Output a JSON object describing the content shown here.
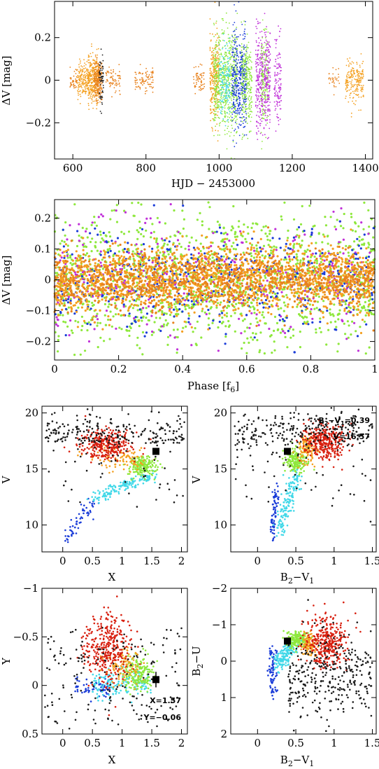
{
  "chart_data": [
    {
      "id": "lc",
      "type": "scatter",
      "xlabel": "HJD − 2453000",
      "ylabel": "ΔV [mag]",
      "xlim": [
        550,
        1420
      ],
      "ylim": [
        0.37,
        -0.37
      ],
      "xticks": [
        600,
        800,
        1000,
        1200,
        1400
      ],
      "yticks": [
        -0.2,
        0,
        0.2
      ],
      "xtick_labels": [
        "600",
        "800",
        "1000",
        "1200",
        "1400"
      ],
      "ytick_labels": [
        "−0.2",
        "0",
        "0.2"
      ],
      "seasons": [
        {
          "x_range": [
            592,
            612
          ],
          "amp": 0.06,
          "color": "#e8821e",
          "n": 40
        },
        {
          "x_range": [
            612,
            642
          ],
          "amp": 0.1,
          "color": "#f4a020",
          "n": 160
        },
        {
          "x_range": [
            642,
            672
          ],
          "amp": 0.13,
          "color": "#f4a020",
          "n": 320
        },
        {
          "x_range": [
            658,
            680
          ],
          "amp": 0.12,
          "color": "#e8821e",
          "n": 200
        },
        {
          "x_range": [
            672,
            684
          ],
          "amp": 0.15,
          "color": "#1a1a1a",
          "n": 60
        },
        {
          "x_range": [
            690,
            730
          ],
          "amp": 0.07,
          "color": "#e8821e",
          "n": 70
        },
        {
          "x_range": [
            770,
            820
          ],
          "amp": 0.07,
          "color": "#e8821e",
          "n": 90
        },
        {
          "x_range": [
            930,
            960
          ],
          "amp": 0.07,
          "color": "#e8821e",
          "n": 60
        },
        {
          "x_range": [
            975,
            1000
          ],
          "amp": 0.25,
          "color": "#f4a020",
          "n": 260
        },
        {
          "x_range": [
            985,
            1050
          ],
          "amp": 0.28,
          "color": "#8ee83c",
          "n": 650
        },
        {
          "x_range": [
            1000,
            1030
          ],
          "amp": 0.22,
          "color": "#40d8e8",
          "n": 140
        },
        {
          "x_range": [
            1035,
            1075
          ],
          "amp": 0.28,
          "color": "#1a3cd8",
          "n": 420
        },
        {
          "x_range": [
            1060,
            1090
          ],
          "amp": 0.25,
          "color": "#8ee83c",
          "n": 260
        },
        {
          "x_range": [
            1100,
            1120
          ],
          "amp": 0.3,
          "color": "#c030d8",
          "n": 220
        },
        {
          "x_range": [
            1115,
            1135
          ],
          "amp": 0.28,
          "color": "#8ee83c",
          "n": 150
        },
        {
          "x_range": [
            1122,
            1140
          ],
          "amp": 0.27,
          "color": "#c030d8",
          "n": 180
        },
        {
          "x_range": [
            1150,
            1170
          ],
          "amp": 0.25,
          "color": "#c030d8",
          "n": 120
        },
        {
          "x_range": [
            1300,
            1330
          ],
          "amp": 0.07,
          "color": "#e8821e",
          "n": 30
        },
        {
          "x_range": [
            1345,
            1395
          ],
          "amp": 0.12,
          "color": "#f4a020",
          "n": 200
        }
      ]
    },
    {
      "id": "phase",
      "type": "scatter",
      "xlabel": "Phase [f6]",
      "ylabel": "ΔV [mag]",
      "xlim": [
        0,
        1
      ],
      "ylim": [
        0.26,
        -0.26
      ],
      "xticks": [
        0,
        0.2,
        0.4,
        0.6,
        0.8,
        1
      ],
      "yticks": [
        -0.2,
        -0.1,
        0,
        0.1,
        0.2
      ],
      "xtick_labels": [
        "0",
        "0.2",
        "0.4",
        "0.6",
        "0.8",
        "1"
      ],
      "ytick_labels": [
        "−0.2",
        "−0.1",
        "0",
        "0.1",
        "0.2"
      ],
      "series": [
        {
          "color": "#8ee83c",
          "sigma": 0.11,
          "n": 1400
        },
        {
          "color": "#c030d8",
          "sigma": 0.09,
          "n": 350
        },
        {
          "color": "#1a3cd8",
          "sigma": 0.08,
          "n": 450
        },
        {
          "color": "#f4a020",
          "sigma": 0.055,
          "n": 1500
        },
        {
          "color": "#e8821e",
          "sigma": 0.045,
          "n": 1000
        }
      ]
    },
    {
      "id": "cmd_vx",
      "type": "scatter",
      "xlabel": "X",
      "ylabel": "V",
      "xlim": [
        -0.35,
        2.1
      ],
      "ylim": [
        20.6,
        7.6
      ],
      "xticks": [
        0,
        0.5,
        1,
        1.5,
        2
      ],
      "yticks": [
        10,
        15,
        20
      ],
      "xtick_labels": [
        "0",
        "0.5",
        "1",
        "1.5",
        "2"
      ],
      "ytick_labels": [
        "10",
        "15",
        "20"
      ],
      "target": {
        "x": 1.57,
        "y": 16.57
      }
    },
    {
      "id": "cmd_vbv",
      "type": "scatter",
      "xlabel": "B2−V1",
      "ylabel": "V",
      "xlim": [
        -0.35,
        1.55
      ],
      "ylim": [
        20.6,
        7.6
      ],
      "xticks": [
        0,
        0.5,
        1,
        1.5
      ],
      "yticks": [
        10,
        15,
        20
      ],
      "xtick_labels": [
        "0",
        "0.5",
        "1",
        "1.5"
      ],
      "ytick_labels": [
        "10",
        "15",
        "20"
      ],
      "target": {
        "x": 0.39,
        "y": 16.57
      },
      "annotations": [
        "B2−V1=0.39",
        "V=16.57"
      ]
    },
    {
      "id": "ccd_xy",
      "type": "scatter",
      "xlabel": "X",
      "ylabel": "Y",
      "xlim": [
        -0.35,
        2.1
      ],
      "ylim": [
        -1,
        0.5
      ],
      "xticks": [
        0,
        0.5,
        1,
        1.5,
        2
      ],
      "yticks": [
        -1,
        -0.5,
        0,
        0.5
      ],
      "xtick_labels": [
        "0",
        "0.5",
        "1",
        "1.5",
        "2"
      ],
      "ytick_labels": [
        "−1",
        "−0.5",
        "0",
        "0.5"
      ],
      "target": {
        "x": 1.57,
        "y": -0.06,
        "err": 0.08
      },
      "annotations": [
        "X=1.57",
        "Y=−0.06"
      ]
    },
    {
      "id": "ccd_ub",
      "type": "scatter",
      "xlabel": "B2−V1",
      "ylabel": "B2−U",
      "xlim": [
        -0.35,
        1.55
      ],
      "ylim": [
        -2,
        2
      ],
      "xticks": [
        0,
        0.5,
        1,
        1.5
      ],
      "yticks": [
        -2,
        -1,
        0,
        1,
        2
      ],
      "xtick_labels": [
        "0",
        "0.5",
        "1",
        "1.5"
      ],
      "ytick_labels": [
        "−2",
        "−1",
        "0",
        "1",
        "2"
      ],
      "target": {
        "x": 0.39,
        "y": -0.55
      }
    }
  ],
  "colors": {
    "blue": "#1a3cd8",
    "cyan": "#40d8e8",
    "green": "#8ee83c",
    "orange": "#f4a020",
    "darkorange": "#e8821e",
    "red": "#d82010",
    "black": "#1a1a1a",
    "magenta": "#c030d8"
  }
}
